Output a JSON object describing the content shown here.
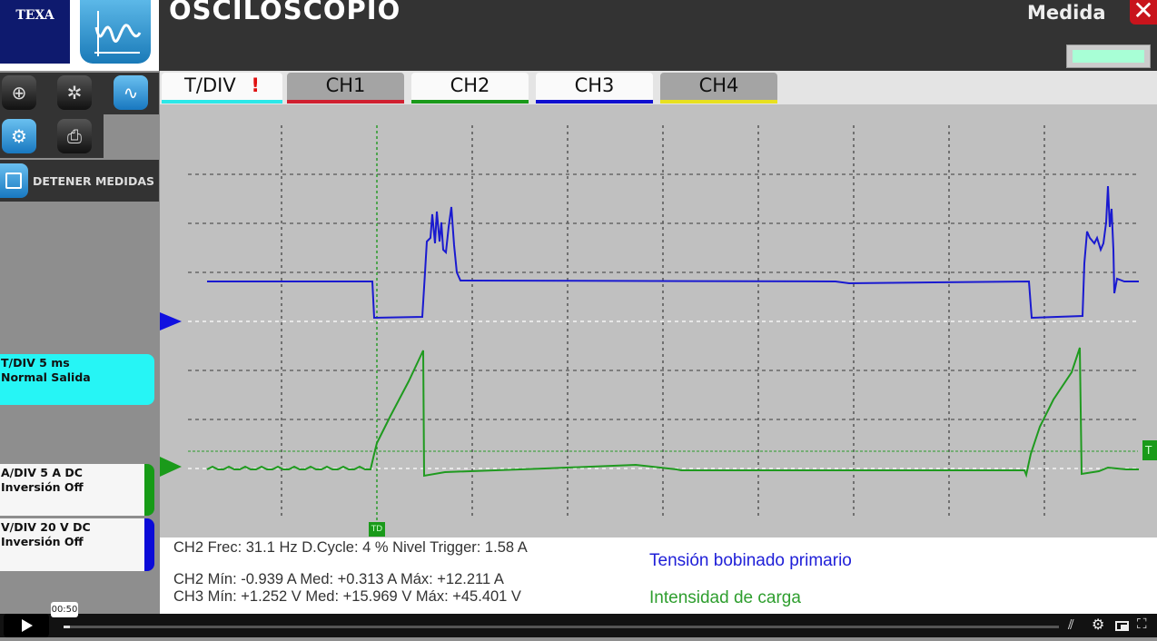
{
  "header": {
    "brand": "TEXA",
    "title": "OSCILOSCOPIO",
    "mode": "Medida",
    "close_icon": "close-icon"
  },
  "sidebar": {
    "tools": [
      "zoom-icon",
      "signal-settings-icon",
      "measure-icon",
      "settings-icon",
      "print-icon"
    ],
    "stop_label": "DETENER MEDIDAS",
    "tdiv": {
      "line1": "T/DIV  5 ms",
      "line2": "Normal  Salida",
      "color": "#26f5f5"
    },
    "ch2": {
      "line1": "A/DIV  5 A  DC",
      "line2": "Inversión  Off",
      "color": "#169b16"
    },
    "ch3": {
      "line1": "V/DIV  20 V  DC",
      "line2": "Inversión  Off",
      "color": "#0a0ad8"
    }
  },
  "tabs": [
    {
      "label": "T/DIV",
      "color": "#2ce8e8",
      "warning": "!"
    },
    {
      "label": "CH1",
      "color": "#d02030"
    },
    {
      "label": "CH2",
      "color": "#1a9a1a"
    },
    {
      "label": "CH3",
      "color": "#1010d0"
    },
    {
      "label": "CH4",
      "color": "#e8e020"
    }
  ],
  "plot": {
    "trigger_marker": "TD",
    "trigger_level_marker": "T",
    "ch2_color": "#1f9a1f",
    "ch3_color": "#1a1ad0"
  },
  "info": {
    "line1": "CH2 Frec: 31.1 Hz   D.Cycle: 4 %   Nivel Trigger: 1.58 A",
    "line2": "CH2 Mín: -0.939 A  Med: +0.313 A  Máx: +12.211 A",
    "line3": "CH3 Mín: +1.252 V  Med: +15.969 V  Máx: +45.401 V",
    "legend_blue": "Tensión bobinado primario",
    "legend_green": "Intensidad de carga"
  },
  "video": {
    "time_tooltip": "00:50",
    "progress_percent": 0.6,
    "controls": [
      "play-icon",
      "subtitles-off-icon",
      "settings-icon",
      "picture-in-picture-icon",
      "fullscreen-icon"
    ]
  }
}
